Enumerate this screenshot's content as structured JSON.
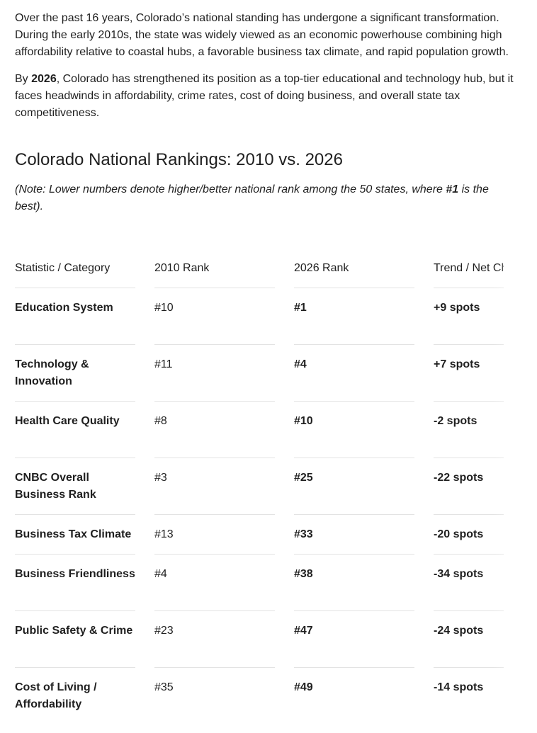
{
  "intro": {
    "p1": "Over the past 16 years, Colorado’s national standing has undergone a significant transformation. During the early 2010s, the state was widely viewed as an economic powerhouse combining high affordability relative to coastal hubs, a favorable business tax climate, and rapid population growth.",
    "p2_lead": "By ",
    "p2_bold": "2026",
    "p2_rest": ", Colorado has strengthened its position as a top-tier educational and technology hub, but it faces headwinds in affordability, crime rates, cost of doing business, and overall state tax competitiveness."
  },
  "section": {
    "heading": "Colorado National Rankings: 2010 vs. 2026",
    "note_lead": "(Note: Lower numbers denote higher/better national rank among the 50 states, where ",
    "note_bold": "#1",
    "note_rest": " is the best)."
  },
  "table": {
    "headers": [
      "Statistic / Category",
      "2010 Rank",
      "2026 Rank",
      "Trend / Net Change"
    ],
    "rows": [
      {
        "category": "Education System",
        "rank2010": "#10",
        "rank2026": "#1",
        "trend": "+9 spots"
      },
      {
        "category": "Technology & Innovation",
        "rank2010": "#11",
        "rank2026": "#4",
        "trend": "+7 spots"
      },
      {
        "category": "Health Care Quality",
        "rank2010": "#8",
        "rank2026": "#10",
        "trend": "-2 spots"
      },
      {
        "category": "CNBC Overall Business Rank",
        "rank2010": "#3",
        "rank2026": "#25",
        "trend": "-22 spots"
      },
      {
        "category": "Business Tax Climate",
        "rank2010": "#13",
        "rank2026": "#33",
        "trend": "-20 spots"
      },
      {
        "category": "Business Friendliness",
        "rank2010": "#4",
        "rank2026": "#38",
        "trend": "-34 spots"
      },
      {
        "category": "Public Safety & Crime",
        "rank2010": "#23",
        "rank2026": "#47",
        "trend": "-24 spots"
      },
      {
        "category": "Cost of Living / Affordability",
        "rank2010": "#35",
        "rank2026": "#49",
        "trend": "-14 spots"
      }
    ]
  }
}
